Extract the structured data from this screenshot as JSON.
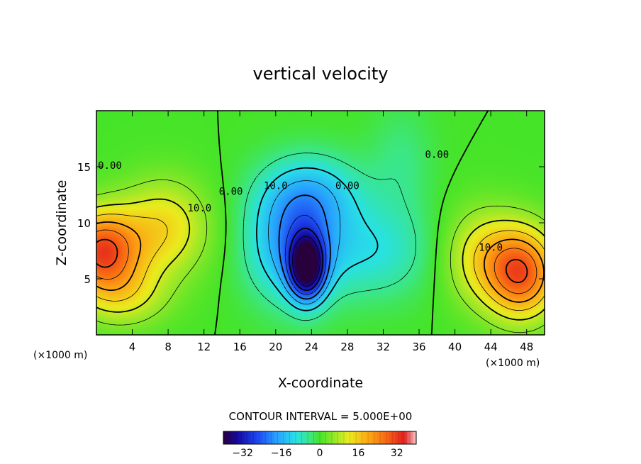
{
  "chart_data": {
    "type": "heatmap",
    "title": "vertical velocity",
    "xlabel": "X-coordinate",
    "ylabel": "Z-coordinate",
    "x_unit_left": "(×1000 m)",
    "x_unit_right": "(×1000 m)",
    "xlim": [
      0,
      50
    ],
    "ylim": [
      0,
      20
    ],
    "x_ticks": [
      "4",
      "8",
      "12",
      "16",
      "20",
      "24",
      "28",
      "32",
      "36",
      "40",
      "44",
      "48"
    ],
    "x_tick_values": [
      4,
      8,
      12,
      16,
      20,
      24,
      28,
      32,
      36,
      40,
      44,
      48
    ],
    "y_ticks": [
      "5",
      "10",
      "15"
    ],
    "y_tick_values": [
      5,
      10,
      15
    ],
    "contour_interval_text": "CONTOUR INTERVAL = 5.000E+00",
    "contour_interval": 5,
    "colorbar": {
      "min": -40,
      "max": 40,
      "tick_labels": [
        "−32",
        "−16",
        "0",
        "16",
        "32"
      ],
      "tick_values": [
        -32,
        -16,
        0,
        16,
        32
      ]
    },
    "contour_labels": [
      {
        "text": "0.00",
        "x": 1.5,
        "y": 14.8
      },
      {
        "text": "10.0",
        "x": 11.5,
        "y": 11.0
      },
      {
        "text": "0.00",
        "x": 15.0,
        "y": 12.5
      },
      {
        "text": "10.0",
        "x": 20.0,
        "y": 13.0
      },
      {
        "text": "0.00",
        "x": 28.0,
        "y": 13.0
      },
      {
        "text": "0.00",
        "x": 38.0,
        "y": 15.8
      },
      {
        "text": "10.0",
        "x": 44.0,
        "y": 7.5
      }
    ],
    "field_features": [
      {
        "name": "updraft-left",
        "x": 0.5,
        "y": 7.5,
        "value": 30,
        "sx": 3.0,
        "sy": 2.5
      },
      {
        "name": "updraft-left-arm",
        "x": 7.5,
        "y": 9.5,
        "value": 14,
        "sx": 3.5,
        "sy": 3.0
      },
      {
        "name": "updraft-left-low",
        "x": 3.0,
        "y": 3.5,
        "value": 10,
        "sx": 3.5,
        "sy": 2.0
      },
      {
        "name": "updraft-right",
        "x": 47.5,
        "y": 5.5,
        "value": 28,
        "sx": 2.8,
        "sy": 2.8
      },
      {
        "name": "updraft-right-ext",
        "x": 43.0,
        "y": 7.0,
        "value": 12,
        "sx": 3.0,
        "sy": 3.0
      },
      {
        "name": "downdraft-core",
        "x": 23.5,
        "y": 6.0,
        "value": -34,
        "sx": 1.4,
        "sy": 2.0
      },
      {
        "name": "downdraft-mid",
        "x": 22.0,
        "y": 8.0,
        "value": -18,
        "sx": 3.5,
        "sy": 3.5
      },
      {
        "name": "downdraft-upper",
        "x": 24.0,
        "y": 12.5,
        "value": -12,
        "sx": 4.0,
        "sy": 2.5
      },
      {
        "name": "downdraft-east",
        "x": 31.0,
        "y": 7.5,
        "value": -9,
        "sx": 4.5,
        "sy": 3.0
      },
      {
        "name": "downdraft-top",
        "x": 34.0,
        "y": 15.5,
        "value": -4,
        "sx": 2.5,
        "sy": 3.5
      }
    ]
  }
}
